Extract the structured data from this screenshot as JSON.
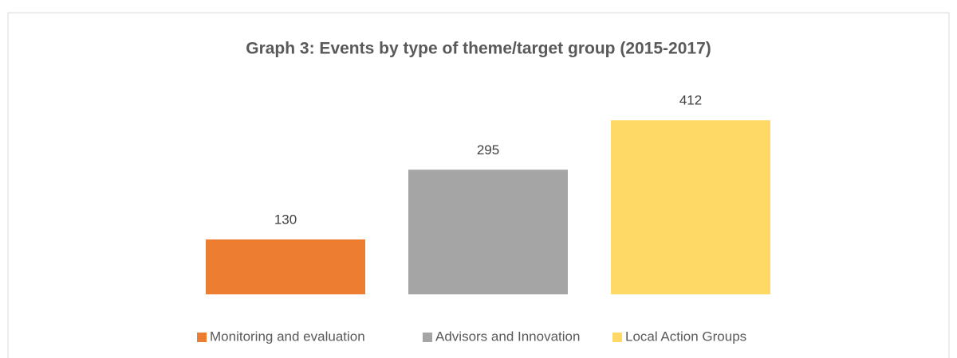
{
  "chart_data": {
    "type": "bar",
    "title": "Graph 3: Events by type of theme/target group (2015-2017)",
    "categories": [
      null
    ],
    "series": [
      {
        "name": "Monitoring and evaluation",
        "color": "#ED7D31",
        "values": [
          130
        ]
      },
      {
        "name": "Advisors and Innovation",
        "color": "#A5A5A5",
        "values": [
          295
        ]
      },
      {
        "name": "Local Action Groups",
        "color": "#FFD966",
        "values": [
          412
        ]
      }
    ],
    "ylim": [
      0,
      450
    ],
    "legend": "bottom"
  }
}
